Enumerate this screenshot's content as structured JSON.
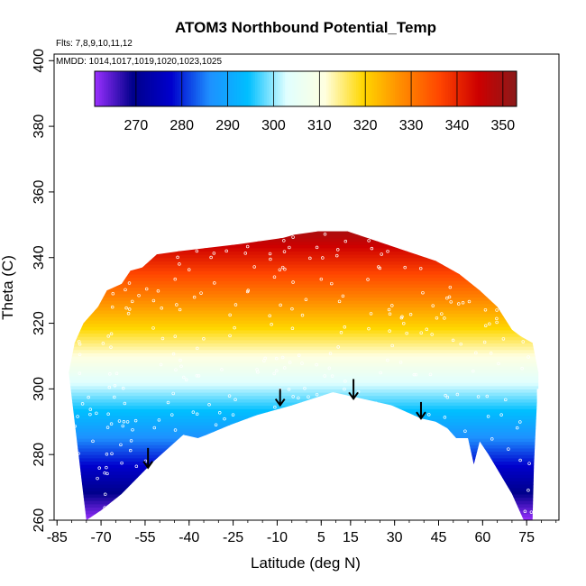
{
  "chart_data": {
    "type": "heatmap",
    "title": "ATOM3 Northbound Potential_Temp",
    "flights_label": "Flts: 7,8,9,10,11,12",
    "dates_label": "MMDD: 1014,1017,1019,1020,1023,1025",
    "xlabel": "Latitude (deg N)",
    "ylabel": "Theta (C)",
    "xlim": [
      -86,
      86
    ],
    "ylim": [
      260,
      402
    ],
    "x_ticks": [
      "-85",
      "-70",
      "-55",
      "-40",
      "-25",
      "-10",
      "5",
      "15",
      "30",
      "45",
      "60",
      "75"
    ],
    "x_tick_values": [
      -85,
      -70,
      -55,
      -40,
      -25,
      -10,
      5,
      15,
      30,
      45,
      60,
      75
    ],
    "y_ticks": [
      "260",
      "280",
      "300",
      "320",
      "340",
      "360",
      "380",
      "400"
    ],
    "y_tick_values": [
      260,
      280,
      300,
      320,
      340,
      360,
      380,
      400
    ],
    "colorbar": {
      "range": [
        260,
        352
      ],
      "tick_labels": [
        "270",
        "280",
        "290",
        "300",
        "310",
        "320",
        "330",
        "340",
        "350"
      ],
      "tick_values": [
        270,
        280,
        290,
        300,
        310,
        320,
        330,
        340,
        350
      ],
      "colors": [
        "#9b30ff",
        "#00008b",
        "#0000cd",
        "#1e90ff",
        "#00bfff",
        "#e0ffff",
        "#ffffe0",
        "#ffd700",
        "#ff8c00",
        "#ff4500",
        "#cd0000",
        "#8b1a1a"
      ]
    },
    "lower_boundary": [
      [
        -75,
        260
      ],
      [
        -70,
        263
      ],
      [
        -63,
        268
      ],
      [
        -52,
        278
      ],
      [
        -42,
        286
      ],
      [
        -37,
        285
      ],
      [
        -34,
        286
      ],
      [
        -26,
        289
      ],
      [
        -17,
        292
      ],
      [
        -5,
        295
      ],
      [
        9,
        299
      ],
      [
        19,
        297
      ],
      [
        29,
        295
      ],
      [
        39,
        291
      ],
      [
        44,
        290
      ],
      [
        48,
        288
      ],
      [
        51,
        285
      ],
      [
        55,
        285
      ],
      [
        57,
        277
      ],
      [
        59,
        284
      ],
      [
        62,
        280
      ],
      [
        66,
        274
      ],
      [
        70,
        268
      ],
      [
        74,
        260
      ],
      [
        77,
        260
      ],
      [
        77.5,
        277
      ],
      [
        78.5,
        296
      ],
      [
        78.5,
        300
      ]
    ],
    "upper_boundary": [
      [
        -81,
        305
      ],
      [
        -79,
        314
      ],
      [
        -76,
        320
      ],
      [
        -71,
        325
      ],
      [
        -68,
        330
      ],
      [
        -63,
        332
      ],
      [
        -60,
        336
      ],
      [
        -56,
        337
      ],
      [
        -51,
        341
      ],
      [
        -43,
        342
      ],
      [
        -24,
        344
      ],
      [
        -8,
        346
      ],
      [
        -4,
        347
      ],
      [
        4,
        348
      ],
      [
        14,
        348
      ],
      [
        24,
        345
      ],
      [
        34,
        342
      ],
      [
        44,
        339
      ],
      [
        52,
        335
      ],
      [
        59,
        330
      ],
      [
        65,
        325
      ],
      [
        70,
        318
      ],
      [
        73,
        316
      ],
      [
        77,
        314
      ],
      [
        79,
        305
      ],
      [
        79,
        300
      ]
    ],
    "arrows": [
      {
        "lat": -54,
        "theta_top": 282,
        "theta_bottom": 276
      },
      {
        "lat": -9,
        "theta_top": 300,
        "theta_bottom": 295
      },
      {
        "lat": 16,
        "theta_top": 303,
        "theta_bottom": 297
      },
      {
        "lat": 39,
        "theta_top": 296,
        "theta_bottom": 291
      }
    ]
  }
}
